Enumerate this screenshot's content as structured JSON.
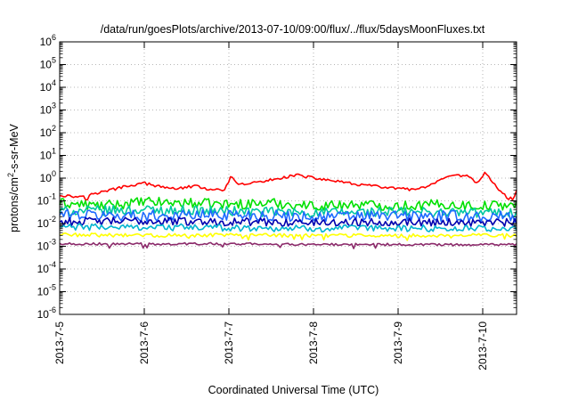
{
  "chart_data": {
    "type": "line",
    "title": "/data/run/goesPlots/archive/2013-07-10/09:00/flux/../flux/5daysMoonFluxes.txt",
    "xlabel": "Coordinated Universal Time (UTC)",
    "ylabel": {
      "prefix": "protons/cm",
      "sup": "2",
      "suffix": "-s-sr-MeV"
    },
    "xlim_days": [
      0,
      5.4
    ],
    "ylim_exp": [
      -6,
      6
    ],
    "log_y": true,
    "grid": true,
    "x_ticks": [
      {
        "day": 0,
        "label": "2013-7-5"
      },
      {
        "day": 1,
        "label": "2013-7-6"
      },
      {
        "day": 2,
        "label": "2013-7-7"
      },
      {
        "day": 3,
        "label": "2013-7-8"
      },
      {
        "day": 4,
        "label": "2013-7-9"
      },
      {
        "day": 5,
        "label": "2013-7-10"
      }
    ],
    "y_ticks": [
      {
        "exp": -6,
        "base": "10",
        "sup": "-6"
      },
      {
        "exp": -5,
        "base": "10",
        "sup": "-5"
      },
      {
        "exp": -4,
        "base": "10",
        "sup": "-4"
      },
      {
        "exp": -3,
        "base": "10",
        "sup": "-3"
      },
      {
        "exp": -2,
        "base": "10",
        "sup": "-2"
      },
      {
        "exp": -1,
        "base": "10",
        "sup": "-1"
      },
      {
        "exp": 0,
        "base": "10",
        "sup": "0"
      },
      {
        "exp": 1,
        "base": "10",
        "sup": "1"
      },
      {
        "exp": 2,
        "base": "10",
        "sup": "2"
      },
      {
        "exp": 3,
        "base": "10",
        "sup": "3"
      },
      {
        "exp": 4,
        "base": "10",
        "sup": "4"
      },
      {
        "exp": 5,
        "base": "10",
        "sup": "5"
      },
      {
        "exp": 6,
        "base": "10",
        "sup": "6"
      }
    ],
    "series": [
      {
        "color": "#ff0000",
        "noise": 0.06,
        "points": [
          [
            0,
            0.18
          ],
          [
            0.2,
            0.15
          ],
          [
            0.4,
            0.2
          ],
          [
            0.6,
            0.3
          ],
          [
            0.8,
            0.45
          ],
          [
            1.0,
            0.6
          ],
          [
            1.2,
            0.4
          ],
          [
            1.4,
            0.35
          ],
          [
            1.6,
            0.45
          ],
          [
            1.8,
            0.3
          ],
          [
            1.95,
            0.28
          ],
          [
            2.02,
            1.2
          ],
          [
            2.1,
            0.5
          ],
          [
            2.4,
            0.7
          ],
          [
            2.6,
            1.0
          ],
          [
            2.8,
            1.4
          ],
          [
            3.0,
            1.0
          ],
          [
            3.2,
            0.8
          ],
          [
            3.4,
            0.6
          ],
          [
            3.6,
            0.5
          ],
          [
            3.8,
            0.4
          ],
          [
            4.0,
            0.35
          ],
          [
            4.2,
            0.3
          ],
          [
            4.4,
            0.5
          ],
          [
            4.6,
            1.2
          ],
          [
            4.8,
            1.3
          ],
          [
            4.95,
            0.6
          ],
          [
            5.02,
            1.8
          ],
          [
            5.1,
            0.8
          ],
          [
            5.2,
            0.3
          ],
          [
            5.3,
            0.12
          ],
          [
            5.38,
            0.15
          ],
          [
            5.4,
            0.32
          ]
        ]
      },
      {
        "color": "#00e000",
        "noise": 0.22,
        "points": [
          [
            0,
            0.08
          ],
          [
            0.5,
            0.06
          ],
          [
            1.0,
            0.09
          ],
          [
            1.5,
            0.08
          ],
          [
            2.0,
            0.07
          ],
          [
            2.5,
            0.08
          ],
          [
            3.0,
            0.06
          ],
          [
            3.5,
            0.07
          ],
          [
            4.0,
            0.06
          ],
          [
            4.5,
            0.07
          ],
          [
            5.0,
            0.06
          ],
          [
            5.4,
            0.07
          ]
        ]
      },
      {
        "color": "#00c8a0",
        "noise": 0.22,
        "points": [
          [
            0,
            0.035
          ],
          [
            1.0,
            0.04
          ],
          [
            2.0,
            0.035
          ],
          [
            3.0,
            0.03
          ],
          [
            4.0,
            0.033
          ],
          [
            5.0,
            0.03
          ],
          [
            5.4,
            0.03
          ]
        ]
      },
      {
        "color": "#1e6bff",
        "noise": 0.25,
        "points": [
          [
            0,
            0.025
          ],
          [
            1.0,
            0.022
          ],
          [
            2.0,
            0.025
          ],
          [
            3.0,
            0.02
          ],
          [
            4.0,
            0.022
          ],
          [
            5.0,
            0.02
          ],
          [
            5.4,
            0.02
          ]
        ]
      },
      {
        "color": "#0000b0",
        "noise": 0.18,
        "points": [
          [
            0,
            0.012
          ],
          [
            1.0,
            0.013
          ],
          [
            2.0,
            0.012
          ],
          [
            3.0,
            0.011
          ],
          [
            4.0,
            0.012
          ],
          [
            5.0,
            0.011
          ],
          [
            5.4,
            0.011
          ]
        ]
      },
      {
        "color": "#00b4d0",
        "noise": 0.15,
        "points": [
          [
            0,
            0.007
          ],
          [
            1.0,
            0.007
          ],
          [
            2.0,
            0.0065
          ],
          [
            3.0,
            0.006
          ],
          [
            4.0,
            0.0062
          ],
          [
            5.0,
            0.006
          ],
          [
            5.4,
            0.006
          ]
        ]
      },
      {
        "color": "#ffff00",
        "noise": 0.08,
        "points": [
          [
            0,
            0.0032
          ],
          [
            1.0,
            0.003
          ],
          [
            2.0,
            0.0031
          ],
          [
            3.0,
            0.003
          ],
          [
            4.0,
            0.0029
          ],
          [
            5.0,
            0.003
          ],
          [
            5.4,
            0.003
          ]
        ]
      },
      {
        "color": "#8b2a6a",
        "noise": 0.05,
        "points": [
          [
            0,
            0.0013
          ],
          [
            1.0,
            0.00125
          ],
          [
            2.0,
            0.0013
          ],
          [
            3.0,
            0.0012
          ],
          [
            4.0,
            0.0012
          ],
          [
            5.0,
            0.00115
          ],
          [
            5.4,
            0.0012
          ]
        ]
      }
    ]
  }
}
